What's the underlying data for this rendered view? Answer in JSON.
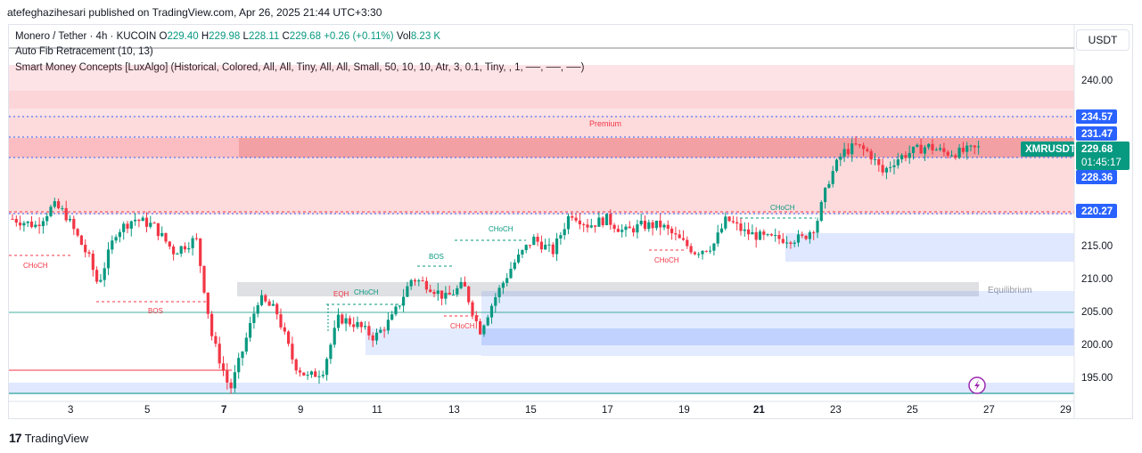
{
  "publisher": "atefeghazihesari published on TradingView.com, Apr 26, 2025 21:44 UTC+3:30",
  "legend": {
    "symbol": "Monero / Tether · 4h · KUCOIN",
    "o_label": "O",
    "o": "229.40",
    "h_label": "H",
    "h": "229.98",
    "l_label": "L",
    "l": "228.11",
    "c_label": "C",
    "c": "229.68",
    "change": "+0.26 (+0.11%)",
    "vol_label": "Vol",
    "vol": "8.23 K",
    "indicator1": "Auto Fib Retracement (10, 13)",
    "indicator2": "Smart Money Concepts [LuxAlgo] (Historical, Colored, All, All, Tiny, All, All, Small, 50, 10, 10, Atr, 3, 0.1, Tiny, , 1, ──, ──, ──)"
  },
  "currency_button": "USDT",
  "y_axis": {
    "ticks": [
      "240.00",
      "235.00",
      "231.47",
      "229.68",
      "228.36",
      "220.27",
      "215.00",
      "210.00",
      "205.00",
      "200.00",
      "195.00"
    ]
  },
  "x_axis": {
    "ticks": [
      "3",
      "5",
      "7",
      "9",
      "11",
      "13",
      "15",
      "17",
      "19",
      "21",
      "23",
      "25",
      "27",
      "29"
    ]
  },
  "price_tags": {
    "top": "234.57",
    "fib": "231.47",
    "symbol": "XMRUSDT",
    "current": "229.68",
    "countdown": "01:45:17",
    "mid": "228.36",
    "low": "220.27"
  },
  "annotations": {
    "premium": "Premium",
    "equilibrium": "Equilibrium",
    "choch": "CHoCH",
    "bos": "BOS",
    "eqh": "EQH"
  },
  "colors": {
    "up": "#089981",
    "down": "#f23645",
    "premium_zone": "#f23645",
    "discount_zone": "#2962ff"
  },
  "footer": {
    "brand": "TradingView"
  }
}
